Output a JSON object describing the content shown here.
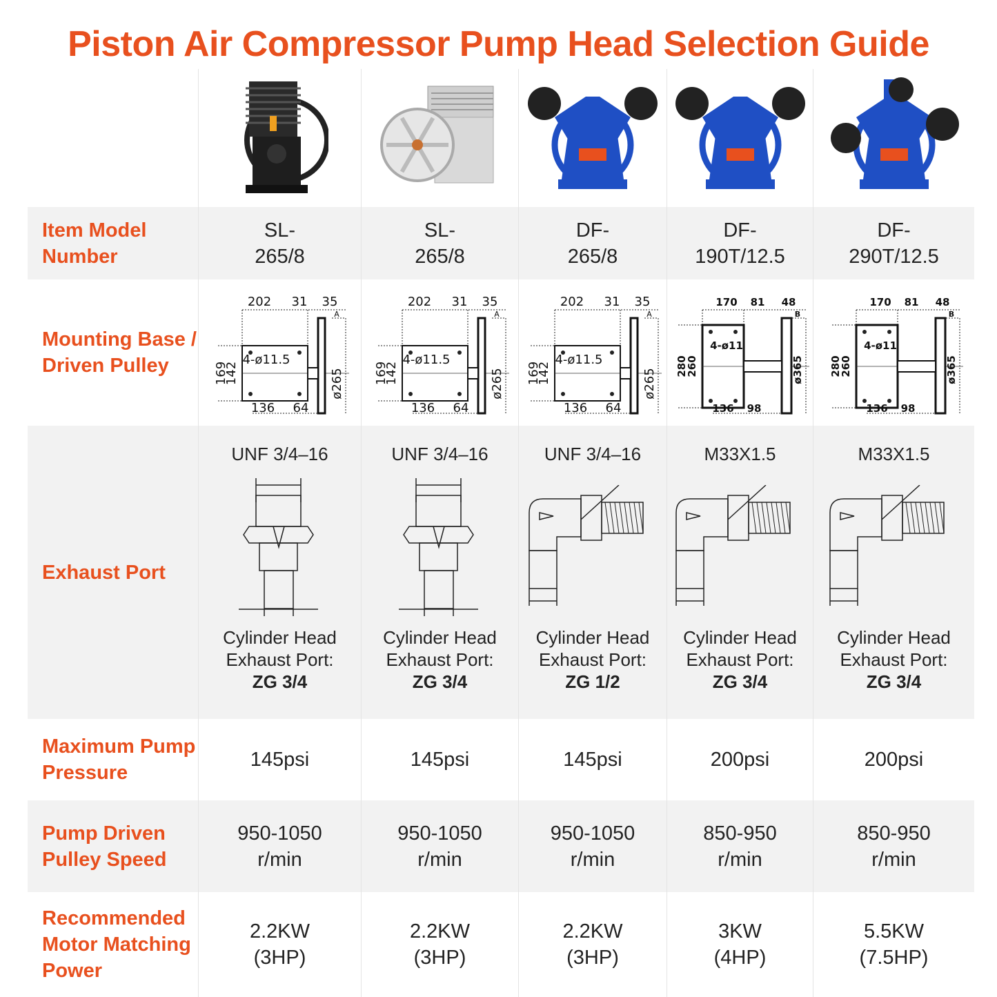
{
  "title": "Piston Air Compressor Pump Head Selection Guide",
  "colors": {
    "accent": "#e8501e",
    "row_shade": "#f2f2f2",
    "pump_blue": "#1f4fc4"
  },
  "rows": {
    "model": "Item Model Number",
    "mount": "Mounting Base / Driven Pulley",
    "exhaust": "Exhaust Port",
    "pressure": "Maximum Pump Pressure",
    "speed": "Pump Driven Pulley Speed",
    "power": "Recommended Motor Matching Power"
  },
  "products": [
    {
      "image": "black-cast-iron-pump-icon",
      "model_1": "SL-",
      "model_2": "265/8",
      "dims": {
        "w": "202",
        "a": "31",
        "b": "35",
        "groove": "A",
        "h1": "169",
        "h2": "142",
        "holes": "4-ø11.5",
        "dia": "ø265",
        "base": "136",
        "off": "64"
      },
      "thread": "UNF 3/4–16",
      "fitting": "straight",
      "ex_1": "Cylinder Head",
      "ex_2": "Exhaust Port:",
      "ex_3": "ZG 3/4",
      "pressure": "145psi",
      "speed_1": "950-1050",
      "speed_2": "r/min",
      "power_1": "2.2KW",
      "power_2": "(3HP)"
    },
    {
      "image": "aluminum-pump-icon",
      "model_1": "SL-",
      "model_2": "265/8",
      "dims": {
        "w": "202",
        "a": "31",
        "b": "35",
        "groove": "A",
        "h1": "169",
        "h2": "142",
        "holes": "4-ø11.5",
        "dia": "ø265",
        "base": "136",
        "off": "64"
      },
      "thread": "UNF 3/4–16",
      "fitting": "straight",
      "ex_1": "Cylinder Head",
      "ex_2": "Exhaust Port:",
      "ex_3": "ZG 3/4",
      "pressure": "145psi",
      "speed_1": "950-1050",
      "speed_2": "r/min",
      "power_1": "2.2KW",
      "power_2": "(3HP)"
    },
    {
      "image": "blue-v-twin-pump-icon",
      "model_1": "DF-",
      "model_2": "265/8",
      "dims": {
        "w": "202",
        "a": "31",
        "b": "35",
        "groove": "A",
        "h1": "169",
        "h2": "142",
        "holes": "4-ø11.5",
        "dia": "ø265",
        "base": "136",
        "off": "64"
      },
      "thread": "UNF 3/4–16",
      "fitting": "elbow",
      "ex_1": "Cylinder Head",
      "ex_2": "Exhaust Port:",
      "ex_3": "ZG 1/2",
      "pressure": "145psi",
      "speed_1": "950-1050",
      "speed_2": "r/min",
      "power_1": "2.2KW",
      "power_2": "(3HP)"
    },
    {
      "image": "blue-v-twin-pump-icon",
      "model_1": "DF-",
      "model_2": "190T/12.5",
      "dims": {
        "w": "170",
        "a": "81",
        "b": "48",
        "groove": "B",
        "h1": "280",
        "h2": "260",
        "holes": "4-ø11",
        "dia": "ø365",
        "base": "136",
        "off": "98"
      },
      "thread": "M33X1.5",
      "fitting": "elbow",
      "ex_1": "Cylinder Head",
      "ex_2": "Exhaust Port:",
      "ex_3": "ZG 3/4",
      "pressure": "200psi",
      "speed_1": "850-950",
      "speed_2": "r/min",
      "power_1": "3KW",
      "power_2": "(4HP)"
    },
    {
      "image": "blue-w-triple-pump-icon",
      "model_1": "DF-",
      "model_2": "290T/12.5",
      "dims": {
        "w": "170",
        "a": "81",
        "b": "48",
        "groove": "B",
        "h1": "280",
        "h2": "260",
        "holes": "4-ø11",
        "dia": "ø365",
        "base": "136",
        "off": "98"
      },
      "thread": "M33X1.5",
      "fitting": "elbow",
      "ex_1": "Cylinder Head",
      "ex_2": "Exhaust Port:",
      "ex_3": "ZG 3/4",
      "pressure": "200psi",
      "speed_1": "850-950",
      "speed_2": "r/min",
      "power_1": "5.5KW",
      "power_2": "(7.5HP)"
    }
  ]
}
